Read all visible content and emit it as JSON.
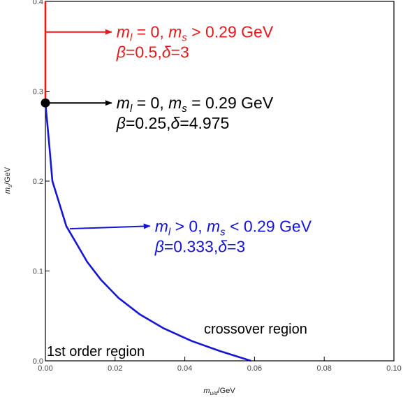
{
  "chart_data": {
    "type": "line",
    "xlabel": {
      "main": "m",
      "sub": "u/d",
      "unit": "/GeV"
    },
    "ylabel": {
      "main": "m",
      "sub": "s",
      "unit": "/GeV"
    },
    "xlim": [
      0,
      0.1
    ],
    "ylim": [
      0,
      0.4
    ],
    "xticks": [
      "0.00",
      "0.02",
      "0.04",
      "0.06",
      "0.08",
      "0.10"
    ],
    "yticks": [
      "0.0",
      "0.1",
      "0.2",
      "0.3",
      "0.4"
    ],
    "grid": false,
    "series": [
      {
        "color": "#1515d6",
        "x": [
          0.0,
          0.001,
          0.002,
          0.004,
          0.006,
          0.009,
          0.012,
          0.016,
          0.021,
          0.027,
          0.034,
          0.042,
          0.05,
          0.059
        ],
        "y": [
          0.287,
          0.245,
          0.2,
          0.175,
          0.15,
          0.13,
          0.11,
          0.09,
          0.07,
          0.052,
          0.036,
          0.022,
          0.011,
          0.0
        ]
      },
      {
        "color": "#e31a1c",
        "x": [
          0.0,
          0.0
        ],
        "y": [
          0.287,
          0.4
        ]
      }
    ],
    "critical_point": {
      "x": 0.0,
      "y": 0.287,
      "color": "#000000"
    },
    "annotations": [
      {
        "color": "#e31a1c",
        "arrow_from": [
          0.0,
          0.366
        ],
        "arrow_to": [
          0.019,
          0.366
        ],
        "line1": {
          "a": "m",
          "a_sub": "l",
          "a_rest": " = 0, ",
          "b": "m",
          "b_sub": "s",
          "b_rest": " > 0.29 GeV"
        },
        "line2": {
          "beta": "β",
          "beta_val": "=0.5,",
          "delta": "δ",
          "delta_val": "=3"
        }
      },
      {
        "color": "#000000",
        "arrow_from": [
          0.0,
          0.287
        ],
        "arrow_to": [
          0.019,
          0.287
        ],
        "line1": {
          "a": "m",
          "a_sub": "l",
          "a_rest": " = 0, ",
          "b": "m",
          "b_sub": "s",
          "b_rest": " = 0.29 GeV"
        },
        "line2": {
          "beta": "β",
          "beta_val": "=0.25,",
          "delta": "δ",
          "delta_val": "=4.975"
        }
      },
      {
        "color": "#1515d6",
        "arrow_from": [
          0.007,
          0.147
        ],
        "arrow_to": [
          0.03,
          0.15
        ],
        "line1": {
          "a": "m",
          "a_sub": "l",
          "a_rest": " > 0, ",
          "b": "m",
          "b_sub": "s",
          "b_rest": " < 0.29 GeV"
        },
        "line2": {
          "beta": "β",
          "beta_val": "=0.333,",
          "delta": "δ",
          "delta_val": "=3"
        }
      }
    ],
    "region_labels": [
      "crossover region",
      "1st order region"
    ]
  }
}
